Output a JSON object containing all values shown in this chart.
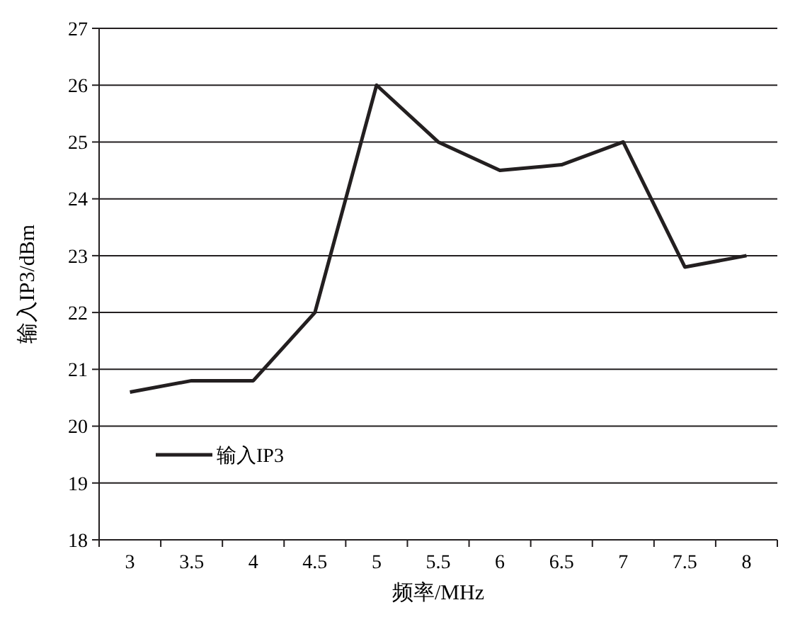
{
  "chart_data": {
    "type": "line",
    "xlabel": "频率/MHz",
    "ylabel": "输入IP3/dBm",
    "categories": [
      "3",
      "3.5",
      "4",
      "4.5",
      "5",
      "5.5",
      "6",
      "6.5",
      "7",
      "7.5",
      "8"
    ],
    "series": [
      {
        "name": "输入IP3",
        "color": "#231f20",
        "values": [
          20.6,
          20.8,
          20.8,
          22,
          26,
          25,
          24.5,
          24.6,
          25,
          22.8,
          23
        ]
      }
    ],
    "ylim": [
      18,
      27
    ],
    "yticks": [
      18,
      19,
      20,
      21,
      22,
      23,
      24,
      25,
      26,
      27
    ],
    "grid": "y",
    "legend": "bottom left",
    "marker": "none",
    "line_style": "solid"
  }
}
